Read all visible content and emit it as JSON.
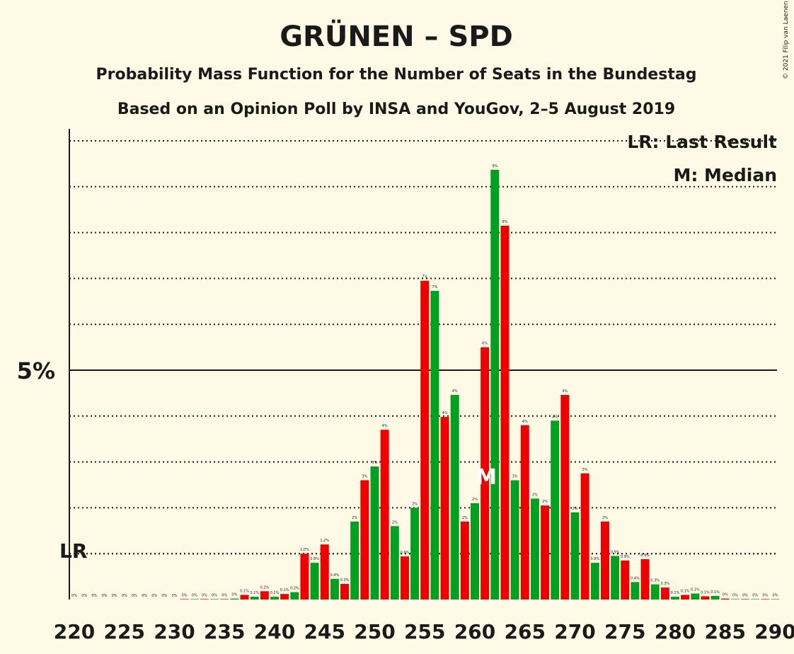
{
  "chart_data": {
    "type": "bar",
    "title": "GRÜNEN – SPD",
    "subtitle": "Probability Mass Function for the Number of Seats in the Bundestag",
    "subtitle2": "Based on an Opinion Poll by INSA and YouGov, 2–5 August 2019",
    "copyright": "© 2021 Filip van Laenen",
    "legend": {
      "lr": "LR: Last Result",
      "m": "M: Median",
      "placement": "top-right"
    },
    "y_tick_label": "5%",
    "lr_label": "LR",
    "median_label": "M",
    "lr_seat": 220,
    "median_seat": 261,
    "ylim": [
      0,
      10.2
    ],
    "y_major": 5,
    "y_minor_step": 1,
    "x_tick_labels": [
      "220",
      "225",
      "230",
      "235",
      "240",
      "245",
      "250",
      "255",
      "260",
      "265",
      "270",
      "275",
      "280",
      "285",
      "290"
    ],
    "x_tick_values": [
      220,
      225,
      230,
      235,
      240,
      245,
      250,
      255,
      260,
      265,
      270,
      275,
      280,
      285,
      290
    ],
    "colors": {
      "even": "#00A020",
      "odd": "#EE0000",
      "background": "#FFFAE6"
    },
    "seats": [
      220,
      221,
      222,
      223,
      224,
      225,
      226,
      227,
      228,
      229,
      230,
      231,
      232,
      233,
      234,
      235,
      236,
      237,
      238,
      239,
      240,
      241,
      242,
      243,
      244,
      245,
      246,
      247,
      248,
      249,
      250,
      251,
      252,
      253,
      254,
      255,
      256,
      257,
      258,
      259,
      260,
      261,
      262,
      263,
      264,
      265,
      266,
      267,
      268,
      269,
      270,
      271,
      272,
      273,
      274,
      275,
      276,
      277,
      278,
      279,
      280,
      281,
      282,
      283,
      284,
      285,
      286,
      287,
      288,
      289,
      290
    ],
    "values": [
      0,
      0,
      0,
      0,
      0,
      0,
      0,
      0,
      0,
      0,
      0,
      0.01,
      0.01,
      0.01,
      0.01,
      0.01,
      0.02,
      0.1,
      0.06,
      0.18,
      0.06,
      0.12,
      0.16,
      1.0,
      0.8,
      1.2,
      0.45,
      0.34,
      1.7,
      2.6,
      2.9,
      3.7,
      1.6,
      0.94,
      2.0,
      6.95,
      6.73,
      3.98,
      4.46,
      1.7,
      2.1,
      5.5,
      9.37,
      8.15,
      2.6,
      3.8,
      2.2,
      2.05,
      3.9,
      4.46,
      1.9,
      2.75,
      0.8,
      1.7,
      0.95,
      0.85,
      0.38,
      0.88,
      0.33,
      0.26,
      0.06,
      0.1,
      0.13,
      0.07,
      0.08,
      0.02,
      0.01,
      0.01,
      0.01,
      0.01,
      0.01
    ],
    "labels": [
      "0%",
      "0%",
      "0%",
      "0%",
      "0%",
      "0%",
      "0%",
      "0%",
      "0%",
      "0%",
      "0%",
      "0%",
      "0%",
      "0%",
      "0%",
      "0%",
      "0%",
      "0.1%",
      "0.1%",
      "0.2%",
      "0.1%",
      "0.1%",
      "0.2%",
      "1.0%",
      "0.8%",
      "1.2%",
      "0.4%",
      "0.3%",
      "2%",
      "3%",
      "3%",
      "4%",
      "2%",
      "0.9%",
      "2%",
      "7%",
      "7%",
      "4%",
      "4%",
      "2%",
      "2%",
      "6%",
      "9%",
      "8%",
      "3%",
      "4%",
      "2%",
      "2%",
      "4%",
      "4%",
      "2%",
      "3%",
      "0.8%",
      "2%",
      "0.9%",
      "0.9%",
      "0.4%",
      "0.9%",
      "0.3%",
      "0.3%",
      "0.1%",
      "0.1%",
      "0.1%",
      "0.1%",
      "0.1%",
      "0%",
      "0%",
      "0%",
      "0%",
      "0%",
      "0%"
    ]
  }
}
